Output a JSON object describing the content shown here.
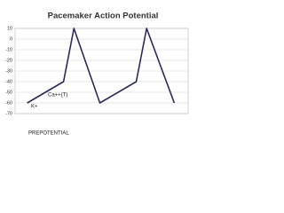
{
  "chart_data": {
    "type": "line",
    "title": "Pacemaker Action Potential",
    "x": [
      7,
      28,
      34,
      49,
      70,
      76,
      92
    ],
    "series": [
      {
        "color": "#2b2a5a",
        "values": [
          -60,
          -40,
          10,
          -60,
          -40,
          10,
          -60
        ]
      }
    ],
    "xlim": [
      0,
      100
    ],
    "ylim": [
      -70,
      10
    ],
    "yticks": [
      10,
      0,
      -10,
      -20,
      -30,
      -40,
      -50,
      -60,
      -70
    ],
    "grid": true,
    "annotations": [
      "K+",
      "Ca++(T)",
      "PREPOTENTIAL"
    ]
  }
}
